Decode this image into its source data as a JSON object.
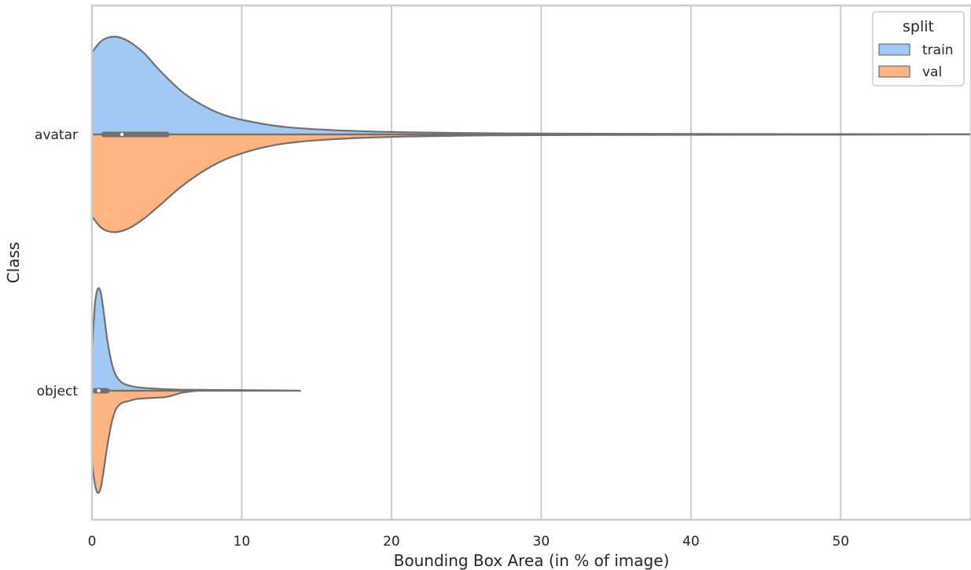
{
  "chart_data": {
    "type": "violin",
    "title": "",
    "xlabel": "Bounding Box Area (in % of image)",
    "ylabel": "Class",
    "xlim": [
      0,
      58.7
    ],
    "xticks": [
      0,
      10,
      20,
      30,
      40,
      50
    ],
    "xtick_labels": [
      "0",
      "10",
      "20",
      "30",
      "40",
      "50"
    ],
    "categories": [
      "avatar",
      "object"
    ],
    "grid": "vertical",
    "legend": {
      "title": "split",
      "position": "top-right",
      "entries": [
        {
          "name": "train",
          "color": "#a1c9f4"
        },
        {
          "name": "val",
          "color": "#ffb482"
        }
      ]
    },
    "split": true,
    "series": [
      {
        "name": "train",
        "color": "#a1c9f4",
        "density": {
          "avatar": {
            "x": [
              0,
              0.5,
              1,
              1.7,
              2.5,
              3.5,
              4.5,
              6,
              7.5,
              9,
              11,
              13,
              16,
              20,
              25,
              30,
              40,
              50,
              58.7
            ],
            "d": [
              0.84,
              0.94,
              0.99,
              1.0,
              0.95,
              0.83,
              0.66,
              0.44,
              0.29,
              0.19,
              0.12,
              0.075,
              0.045,
              0.025,
              0.014,
              0.009,
              0.005,
              0.003,
              0.002
            ]
          },
          "object": {
            "x": [
              0,
              0.2,
              0.4,
              0.6,
              0.8,
              1.0,
              1.3,
              1.6,
              2.0,
              2.5,
              3.0,
              4.0,
              5.0,
              6.0,
              8.0,
              10.0,
              12.0,
              13.9
            ],
            "d": [
              0.4,
              0.85,
              1.0,
              0.95,
              0.75,
              0.52,
              0.28,
              0.15,
              0.08,
              0.05,
              0.035,
              0.022,
              0.015,
              0.01,
              0.008,
              0.006,
              0.004,
              0.0
            ]
          }
        }
      },
      {
        "name": "val",
        "color": "#ffb482",
        "density": {
          "avatar": {
            "x": [
              0,
              0.5,
              1,
              1.7,
              2.5,
              3.5,
              4.5,
              6,
              7.5,
              9,
              11,
              13,
              16,
              20,
              25,
              30,
              40,
              50,
              55.8
            ],
            "d": [
              0.84,
              0.94,
              0.99,
              1.0,
              0.96,
              0.86,
              0.73,
              0.53,
              0.37,
              0.25,
              0.15,
              0.09,
              0.05,
              0.025,
              0.012,
              0.007,
              0.004,
              0.002,
              0.0
            ]
          },
          "object": {
            "x": [
              0,
              0.2,
              0.4,
              0.6,
              0.8,
              1.0,
              1.3,
              1.6,
              2.0,
              2.5,
              3.0,
              4.0,
              5.0,
              6.0,
              7.0
            ],
            "d": [
              0.7,
              0.92,
              1.0,
              0.94,
              0.76,
              0.56,
              0.32,
              0.18,
              0.12,
              0.1,
              0.08,
              0.07,
              0.06,
              0.02,
              0.0
            ]
          }
        }
      }
    ],
    "box": {
      "avatar": {
        "q1": 0.8,
        "median": 2.0,
        "q3": 5.0,
        "whisker_low": 0,
        "whisker_high": 58.7
      },
      "object": {
        "q1": 0.2,
        "median": 0.45,
        "q3": 1.0,
        "whisker_low": 0,
        "whisker_high": 10.0
      }
    }
  }
}
